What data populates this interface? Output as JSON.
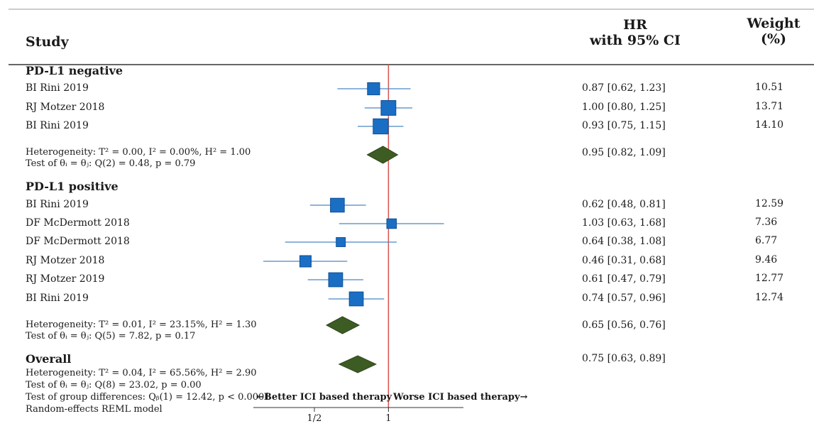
{
  "header": {
    "study": "Study",
    "hr_line1": "HR",
    "hr_line2": "with 95% CI",
    "weight_line1": "Weight",
    "weight_line2": "(%)"
  },
  "chart_data": {
    "type": "forest",
    "x_scale": "log",
    "xlim": [
      0.29,
      1.85
    ],
    "reference_line": 1,
    "ticks": [
      {
        "value": 0.5,
        "label": "1/2"
      },
      {
        "value": 1,
        "label": "1"
      }
    ],
    "colors": {
      "study_marker": "#1a6fc4",
      "summary_diamond": "#3d5c24",
      "ci_line": "#4a86c5",
      "reference_line": "#d9534f"
    },
    "annotations": {
      "left": "←Better ICI based therapy",
      "right": "Worse ICI based therapy→"
    },
    "groups": [
      {
        "name": "PD-L1 negative",
        "studies": [
          {
            "study": "BI Rini 2019",
            "hr": 0.87,
            "lo": 0.62,
            "hi": 1.23,
            "hr_text": "0.87 [0.62, 1.23]",
            "weight": "10.51"
          },
          {
            "study": "RJ Motzer 2018",
            "hr": 1.0,
            "lo": 0.8,
            "hi": 1.25,
            "hr_text": "1.00 [0.80, 1.25]",
            "weight": "13.71"
          },
          {
            "study": "BI Rini 2019",
            "hr": 0.93,
            "lo": 0.75,
            "hi": 1.15,
            "hr_text": "0.93 [0.75, 1.15]",
            "weight": "14.10"
          }
        ],
        "summary": {
          "hr": 0.95,
          "lo": 0.82,
          "hi": 1.09,
          "hr_text": "0.95 [0.82, 1.09]"
        },
        "heterogeneity": "Heterogeneity: T² = 0.00, I² = 0.00%, H² = 1.00",
        "test": "Test of θᵢ = θⱼ: Q(2) = 0.48, p = 0.79"
      },
      {
        "name": "PD-L1 positive",
        "studies": [
          {
            "study": "BI Rini 2019",
            "hr": 0.62,
            "lo": 0.48,
            "hi": 0.81,
            "hr_text": "0.62 [0.48, 0.81]",
            "weight": "12.59"
          },
          {
            "study": "DF McDermott 2018",
            "hr": 1.03,
            "lo": 0.63,
            "hi": 1.68,
            "hr_text": "1.03 [0.63, 1.68]",
            "weight": "7.36"
          },
          {
            "study": "DF McDermott 2018",
            "hr": 0.64,
            "lo": 0.38,
            "hi": 1.08,
            "hr_text": "0.64 [0.38, 1.08]",
            "weight": "6.77"
          },
          {
            "study": "RJ Motzer 2018",
            "hr": 0.46,
            "lo": 0.31,
            "hi": 0.68,
            "hr_text": "0.46 [0.31, 0.68]",
            "weight": "9.46"
          },
          {
            "study": "RJ Motzer 2019",
            "hr": 0.61,
            "lo": 0.47,
            "hi": 0.79,
            "hr_text": "0.61 [0.47, 0.79]",
            "weight": "12.77"
          },
          {
            "study": "BI Rini 2019",
            "hr": 0.74,
            "lo": 0.57,
            "hi": 0.96,
            "hr_text": "0.74 [0.57, 0.96]",
            "weight": "12.74"
          }
        ],
        "summary": {
          "hr": 0.65,
          "lo": 0.56,
          "hi": 0.76,
          "hr_text": "0.65 [0.56, 0.76]"
        },
        "heterogeneity": "Heterogeneity: T² = 0.01, I² = 23.15%, H² = 1.30",
        "test": "Test of θᵢ = θⱼ: Q(5) = 7.82, p = 0.17"
      }
    ],
    "overall": {
      "name": "Overall",
      "hr": 0.75,
      "lo": 0.63,
      "hi": 0.89,
      "hr_text": "0.75 [0.63, 0.89]",
      "heterogeneity": "Heterogeneity: T² = 0.04, I² = 65.56%, H² = 2.90",
      "test": "Test of θᵢ = θⱼ: Q(8) = 23.02, p = 0.00",
      "group_test": "Test of group differences: Qᵦ(1) = 12.42, p < 0.0001",
      "model": "Random-effects REML model"
    }
  }
}
